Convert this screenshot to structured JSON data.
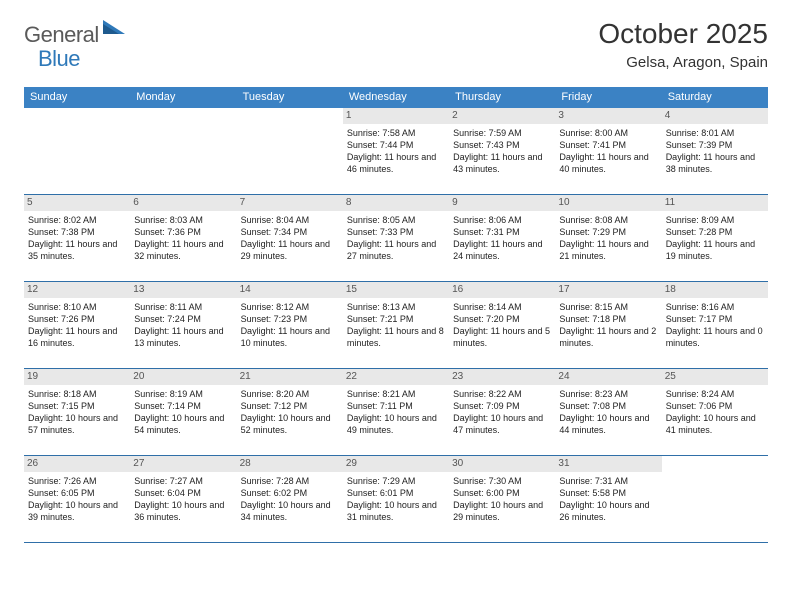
{
  "brand": {
    "part1": "General",
    "part2": "Blue"
  },
  "header": {
    "title": "October 2025",
    "location": "Gelsa, Aragon, Spain"
  },
  "colors": {
    "header_bg": "#3b82c4",
    "header_text": "#ffffff",
    "daynum_bg": "#e8e8e8",
    "week_border": "#2f6fa8",
    "logo_gray": "#5a5a5a",
    "logo_blue": "#2f79b9"
  },
  "weekdays": [
    "Sunday",
    "Monday",
    "Tuesday",
    "Wednesday",
    "Thursday",
    "Friday",
    "Saturday"
  ],
  "weeks": [
    [
      {
        "num": "",
        "sunrise": "",
        "sunset": "",
        "daylight": "",
        "empty": true
      },
      {
        "num": "",
        "sunrise": "",
        "sunset": "",
        "daylight": "",
        "empty": true
      },
      {
        "num": "",
        "sunrise": "",
        "sunset": "",
        "daylight": "",
        "empty": true
      },
      {
        "num": "1",
        "sunrise": "Sunrise: 7:58 AM",
        "sunset": "Sunset: 7:44 PM",
        "daylight": "Daylight: 11 hours and 46 minutes."
      },
      {
        "num": "2",
        "sunrise": "Sunrise: 7:59 AM",
        "sunset": "Sunset: 7:43 PM",
        "daylight": "Daylight: 11 hours and 43 minutes."
      },
      {
        "num": "3",
        "sunrise": "Sunrise: 8:00 AM",
        "sunset": "Sunset: 7:41 PM",
        "daylight": "Daylight: 11 hours and 40 minutes."
      },
      {
        "num": "4",
        "sunrise": "Sunrise: 8:01 AM",
        "sunset": "Sunset: 7:39 PM",
        "daylight": "Daylight: 11 hours and 38 minutes."
      }
    ],
    [
      {
        "num": "5",
        "sunrise": "Sunrise: 8:02 AM",
        "sunset": "Sunset: 7:38 PM",
        "daylight": "Daylight: 11 hours and 35 minutes."
      },
      {
        "num": "6",
        "sunrise": "Sunrise: 8:03 AM",
        "sunset": "Sunset: 7:36 PM",
        "daylight": "Daylight: 11 hours and 32 minutes."
      },
      {
        "num": "7",
        "sunrise": "Sunrise: 8:04 AM",
        "sunset": "Sunset: 7:34 PM",
        "daylight": "Daylight: 11 hours and 29 minutes."
      },
      {
        "num": "8",
        "sunrise": "Sunrise: 8:05 AM",
        "sunset": "Sunset: 7:33 PM",
        "daylight": "Daylight: 11 hours and 27 minutes."
      },
      {
        "num": "9",
        "sunrise": "Sunrise: 8:06 AM",
        "sunset": "Sunset: 7:31 PM",
        "daylight": "Daylight: 11 hours and 24 minutes."
      },
      {
        "num": "10",
        "sunrise": "Sunrise: 8:08 AM",
        "sunset": "Sunset: 7:29 PM",
        "daylight": "Daylight: 11 hours and 21 minutes."
      },
      {
        "num": "11",
        "sunrise": "Sunrise: 8:09 AM",
        "sunset": "Sunset: 7:28 PM",
        "daylight": "Daylight: 11 hours and 19 minutes."
      }
    ],
    [
      {
        "num": "12",
        "sunrise": "Sunrise: 8:10 AM",
        "sunset": "Sunset: 7:26 PM",
        "daylight": "Daylight: 11 hours and 16 minutes."
      },
      {
        "num": "13",
        "sunrise": "Sunrise: 8:11 AM",
        "sunset": "Sunset: 7:24 PM",
        "daylight": "Daylight: 11 hours and 13 minutes."
      },
      {
        "num": "14",
        "sunrise": "Sunrise: 8:12 AM",
        "sunset": "Sunset: 7:23 PM",
        "daylight": "Daylight: 11 hours and 10 minutes."
      },
      {
        "num": "15",
        "sunrise": "Sunrise: 8:13 AM",
        "sunset": "Sunset: 7:21 PM",
        "daylight": "Daylight: 11 hours and 8 minutes."
      },
      {
        "num": "16",
        "sunrise": "Sunrise: 8:14 AM",
        "sunset": "Sunset: 7:20 PM",
        "daylight": "Daylight: 11 hours and 5 minutes."
      },
      {
        "num": "17",
        "sunrise": "Sunrise: 8:15 AM",
        "sunset": "Sunset: 7:18 PM",
        "daylight": "Daylight: 11 hours and 2 minutes."
      },
      {
        "num": "18",
        "sunrise": "Sunrise: 8:16 AM",
        "sunset": "Sunset: 7:17 PM",
        "daylight": "Daylight: 11 hours and 0 minutes."
      }
    ],
    [
      {
        "num": "19",
        "sunrise": "Sunrise: 8:18 AM",
        "sunset": "Sunset: 7:15 PM",
        "daylight": "Daylight: 10 hours and 57 minutes."
      },
      {
        "num": "20",
        "sunrise": "Sunrise: 8:19 AM",
        "sunset": "Sunset: 7:14 PM",
        "daylight": "Daylight: 10 hours and 54 minutes."
      },
      {
        "num": "21",
        "sunrise": "Sunrise: 8:20 AM",
        "sunset": "Sunset: 7:12 PM",
        "daylight": "Daylight: 10 hours and 52 minutes."
      },
      {
        "num": "22",
        "sunrise": "Sunrise: 8:21 AM",
        "sunset": "Sunset: 7:11 PM",
        "daylight": "Daylight: 10 hours and 49 minutes."
      },
      {
        "num": "23",
        "sunrise": "Sunrise: 8:22 AM",
        "sunset": "Sunset: 7:09 PM",
        "daylight": "Daylight: 10 hours and 47 minutes."
      },
      {
        "num": "24",
        "sunrise": "Sunrise: 8:23 AM",
        "sunset": "Sunset: 7:08 PM",
        "daylight": "Daylight: 10 hours and 44 minutes."
      },
      {
        "num": "25",
        "sunrise": "Sunrise: 8:24 AM",
        "sunset": "Sunset: 7:06 PM",
        "daylight": "Daylight: 10 hours and 41 minutes."
      }
    ],
    [
      {
        "num": "26",
        "sunrise": "Sunrise: 7:26 AM",
        "sunset": "Sunset: 6:05 PM",
        "daylight": "Daylight: 10 hours and 39 minutes."
      },
      {
        "num": "27",
        "sunrise": "Sunrise: 7:27 AM",
        "sunset": "Sunset: 6:04 PM",
        "daylight": "Daylight: 10 hours and 36 minutes."
      },
      {
        "num": "28",
        "sunrise": "Sunrise: 7:28 AM",
        "sunset": "Sunset: 6:02 PM",
        "daylight": "Daylight: 10 hours and 34 minutes."
      },
      {
        "num": "29",
        "sunrise": "Sunrise: 7:29 AM",
        "sunset": "Sunset: 6:01 PM",
        "daylight": "Daylight: 10 hours and 31 minutes."
      },
      {
        "num": "30",
        "sunrise": "Sunrise: 7:30 AM",
        "sunset": "Sunset: 6:00 PM",
        "daylight": "Daylight: 10 hours and 29 minutes."
      },
      {
        "num": "31",
        "sunrise": "Sunrise: 7:31 AM",
        "sunset": "Sunset: 5:58 PM",
        "daylight": "Daylight: 10 hours and 26 minutes."
      },
      {
        "num": "",
        "sunrise": "",
        "sunset": "",
        "daylight": "",
        "empty": true
      }
    ]
  ]
}
